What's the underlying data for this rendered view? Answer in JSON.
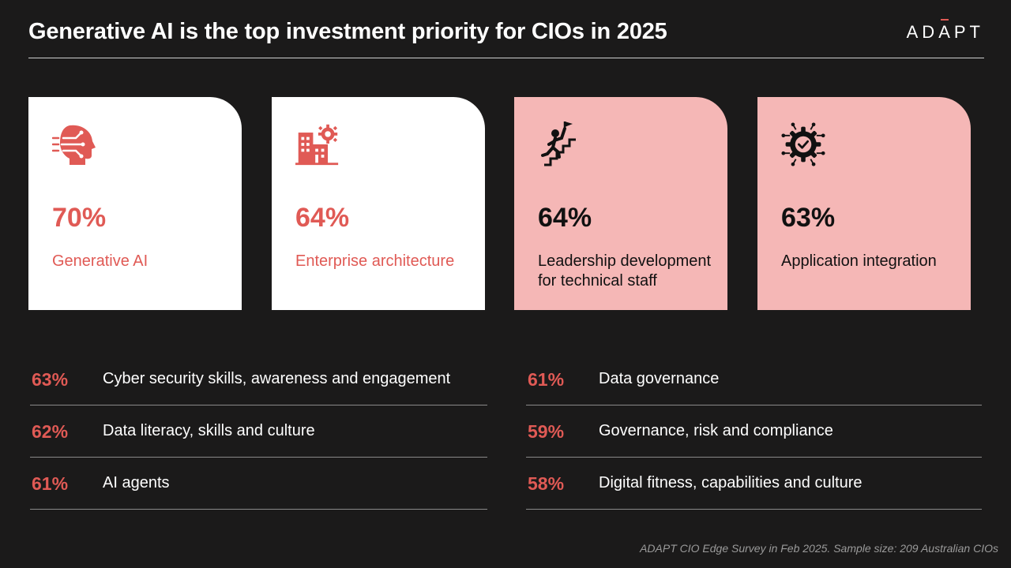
{
  "header": {
    "title": "Generative AI is the top investment priority for CIOs in 2025",
    "logo_pre": "AD",
    "logo_accent": "A",
    "logo_post": "PT"
  },
  "cards": [
    {
      "value": "70%",
      "label": "Generative AI",
      "icon": "ai-head-icon",
      "style": "white"
    },
    {
      "value": "64%",
      "label": "Enterprise architecture",
      "icon": "building-gear-icon",
      "style": "white"
    },
    {
      "value": "64%",
      "label": "Leadership development for technical staff",
      "icon": "climbing-stairs-flag-icon",
      "style": "pink"
    },
    {
      "value": "63%",
      "label": "Application integration",
      "icon": "gear-check-network-icon",
      "style": "pink"
    }
  ],
  "list_left": [
    {
      "value": "63%",
      "label": "Cyber security skills, awareness and engagement"
    },
    {
      "value": "62%",
      "label": "Data literacy, skills and culture"
    },
    {
      "value": "61%",
      "label": "AI agents"
    }
  ],
  "list_right": [
    {
      "value": "61%",
      "label": "Data governance"
    },
    {
      "value": "59%",
      "label": "Governance, risk and compliance"
    },
    {
      "value": "58%",
      "label": "Digital fitness, capabilities and culture"
    }
  ],
  "footnote": "ADAPT CIO Edge Survey in Feb 2025. Sample size: 209 Australian CIOs",
  "colors": {
    "background": "#1b1a1a",
    "accent": "#e05a55",
    "card_white": "#ffffff",
    "card_pink": "#f5b7b6"
  }
}
